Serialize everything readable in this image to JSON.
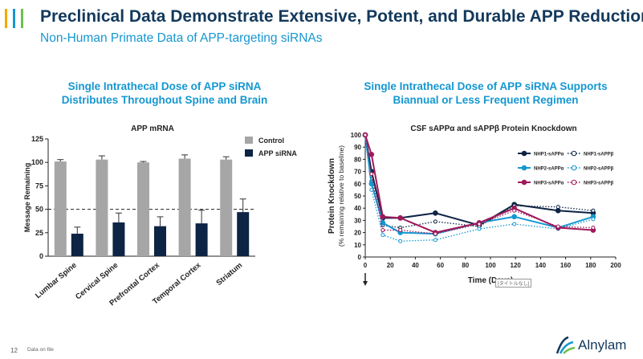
{
  "header": {
    "title": "Preclinical Data Demonstrate Extensive, Potent, and Durable APP Reduction",
    "subtitle": "Non-Human Primate Data of APP-targeting siRNAs"
  },
  "left": {
    "heading_line1": "Single Intrathecal Dose of APP siRNA",
    "heading_line2": "Distributes Throughout Spine and Brain"
  },
  "right": {
    "heading_line1": "Single Intrathecal Dose of APP siRNA Supports",
    "heading_line2": "Biannual or Less Frequent Regimen"
  },
  "footer": {
    "page_number": "12",
    "footnote": "Data on file",
    "logo_text": "Alnylam",
    "tag": "[タイトルなし]"
  },
  "colors": {
    "title": "#13395c",
    "accent": "#1597d1",
    "control_bar": "#a6a6a6",
    "sirna_bar": "#0d2445",
    "nhp1": "#0d2445",
    "nhp2": "#1597d1",
    "nhp3": "#a0195a"
  },
  "chart_data": [
    {
      "type": "bar",
      "title": "APP mRNA",
      "xlabel": "",
      "ylabel": "Message Remaining",
      "ylim": [
        0,
        125
      ],
      "yticks": [
        "0",
        "25",
        "50",
        "75",
        "100",
        "125"
      ],
      "reference_line": 50,
      "legend_position": "right",
      "categories": [
        "Lumbar Spine",
        "Cervical Spine",
        "Prefrontal Cortex",
        "Temporal Cortex",
        "Striatum"
      ],
      "series": [
        {
          "name": "Control",
          "values": [
            101,
            103,
            100,
            104,
            103
          ],
          "errors": [
            2,
            4,
            1,
            4,
            3
          ]
        },
        {
          "name": "APP siRNA",
          "values": [
            24,
            36,
            32,
            35,
            47
          ],
          "errors": [
            7,
            10,
            10,
            14,
            14
          ]
        }
      ]
    },
    {
      "type": "line",
      "title": "CSF sAPPα and sAPPβ Protein Knockdown",
      "xlabel": "Time (Days)",
      "ylabel_line1": "Protein Knockdown",
      "ylabel_line2": "(% remaining relative to baseline)",
      "xlim": [
        0,
        200
      ],
      "ylim": [
        0,
        100
      ],
      "xticks": [
        "0",
        "20",
        "40",
        "60",
        "80",
        "100",
        "120",
        "140",
        "160",
        "180",
        "200"
      ],
      "yticks": [
        "0",
        "10",
        "20",
        "30",
        "40",
        "50",
        "60",
        "70",
        "80",
        "90",
        "100"
      ],
      "legend_position": "top-right",
      "series": [
        {
          "name": "NHP1-sAPPα",
          "style": "solid",
          "color": "#0d2445",
          "x": [
            0,
            5,
            14,
            28,
            56,
            91,
            119,
            154,
            182
          ],
          "y": [
            100,
            70,
            32,
            32,
            36,
            26,
            43,
            38,
            36
          ]
        },
        {
          "name": "NHP1-sAPPβ",
          "style": "dotted",
          "color": "#0d2445",
          "x": [
            0,
            5,
            14,
            28,
            56,
            91,
            119,
            154,
            182
          ],
          "y": [
            100,
            62,
            26,
            24,
            29,
            25,
            42,
            41,
            38
          ]
        },
        {
          "name": "NHP2-sAPPα",
          "style": "solid",
          "color": "#1597d1",
          "x": [
            0,
            5,
            14,
            28,
            56,
            91,
            119,
            154,
            182
          ],
          "y": [
            100,
            60,
            28,
            20,
            19,
            28,
            33,
            24,
            33
          ]
        },
        {
          "name": "NHP2-sAPPβ",
          "style": "dotted",
          "color": "#1597d1",
          "x": [
            0,
            5,
            14,
            28,
            56,
            91,
            119,
            154,
            182
          ],
          "y": [
            100,
            55,
            18,
            13,
            14,
            23,
            27,
            23,
            31
          ]
        },
        {
          "name": "NHP3-sAPPα",
          "style": "solid",
          "color": "#a0195a",
          "x": [
            0,
            5,
            14,
            28,
            56,
            91,
            119,
            154,
            182
          ],
          "y": [
            100,
            84,
            33,
            32,
            20,
            28,
            40,
            24,
            22
          ]
        },
        {
          "name": "NHP3-sAPPβ",
          "style": "dotted",
          "color": "#a0195a",
          "x": [
            0,
            5,
            14,
            28,
            56,
            91,
            119,
            154,
            182
          ],
          "y": [
            100,
            68,
            22,
            22,
            19,
            27,
            38,
            25,
            24
          ]
        }
      ]
    }
  ]
}
